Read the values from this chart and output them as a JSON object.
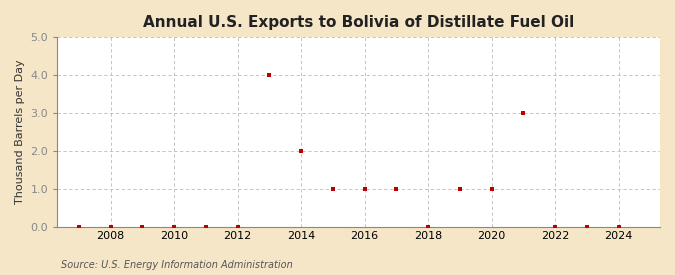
{
  "title": "Annual U.S. Exports to Bolivia of Distillate Fuel Oil",
  "ylabel": "Thousand Barrels per Day",
  "source_text": "Source: U.S. Energy Information Administration",
  "years": [
    2007,
    2008,
    2009,
    2010,
    2011,
    2012,
    2013,
    2014,
    2015,
    2016,
    2017,
    2018,
    2019,
    2020,
    2021,
    2022,
    2023,
    2024
  ],
  "values": [
    0.0,
    0.0,
    0.0,
    0.0,
    0.0,
    0.0,
    4.0,
    2.0,
    1.0,
    1.0,
    1.0,
    0.0,
    1.0,
    1.0,
    3.0,
    0.0,
    0.0,
    0.0
  ],
  "ylim": [
    0,
    5.0
  ],
  "yticks": [
    0.0,
    1.0,
    2.0,
    3.0,
    4.0,
    5.0
  ],
  "xticks": [
    2008,
    2010,
    2012,
    2014,
    2016,
    2018,
    2020,
    2022,
    2024
  ],
  "xlim": [
    2006.3,
    2025.3
  ],
  "marker_color": "#bb0000",
  "marker": "s",
  "marker_size": 3.5,
  "fig_bg_color": "#f5e6c8",
  "plot_bg_color": "#ffffff",
  "grid_color": "#bbbbbb",
  "spine_color": "#888888",
  "title_fontsize": 11,
  "label_fontsize": 8,
  "tick_fontsize": 8,
  "source_fontsize": 7
}
